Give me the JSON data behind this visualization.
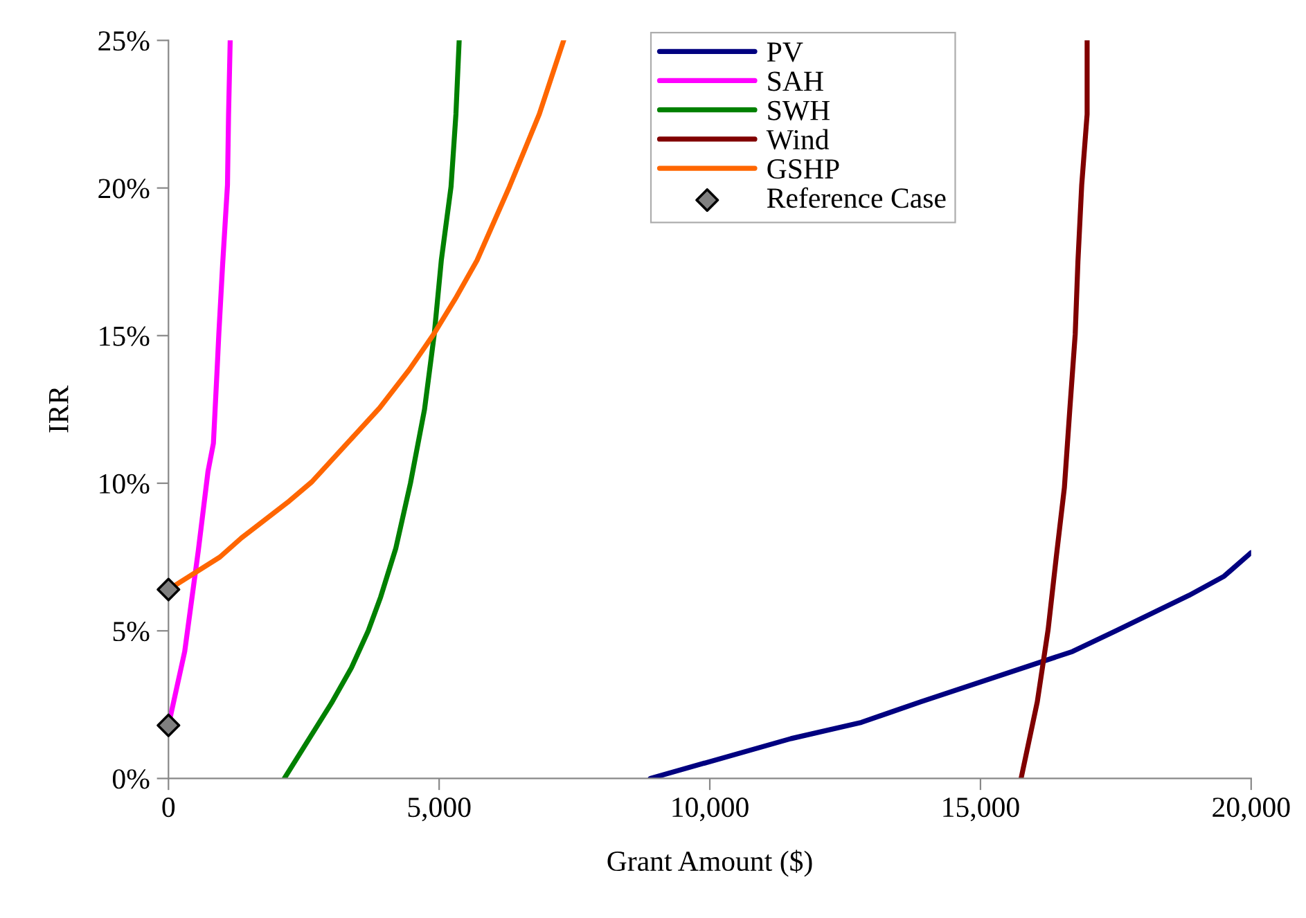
{
  "chart_data": {
    "type": "line",
    "xlabel": "Grant Amount ($)",
    "ylabel": "IRR",
    "xlim": [
      0,
      20000
    ],
    "xticks": [
      0,
      {
        "value": 5000,
        "label": "5,000"
      },
      {
        "value": 10000,
        "label": "10,000"
      },
      {
        "value": 15000,
        "label": "15,000"
      },
      {
        "value": 20000,
        "label": "20,000"
      }
    ],
    "ylim": [
      0,
      25
    ],
    "yticks": [
      {
        "value": 0,
        "label": "0%"
      },
      {
        "value": 5,
        "label": "5%"
      },
      {
        "value": 10,
        "label": "10%"
      },
      {
        "value": 15,
        "label": "15%"
      },
      {
        "value": 20,
        "label": "20%"
      },
      {
        "value": 25,
        "label": "25%"
      }
    ],
    "grid": false,
    "legend": "top right",
    "marker": "none",
    "line_style": "solid",
    "series": [
      {
        "name": "PV",
        "color": "#000080",
        "x": [
          8900,
          11500,
          12800,
          13350,
          13900,
          16700,
          17500,
          18850,
          19500,
          20000
        ],
        "values": [
          0,
          1.35,
          1.9,
          2.25,
          2.6,
          4.3,
          5.0,
          6.2,
          6.85,
          7.65
        ]
      },
      {
        "name": "SAH",
        "color": "#ff00ff",
        "x": [
          0,
          300,
          550,
          730,
          830,
          900,
          930,
          1000,
          1090,
          1110,
          1140
        ],
        "values": [
          1.8,
          4.3,
          7.7,
          10.4,
          11.35,
          13.9,
          15.05,
          17.4,
          20.1,
          22.5,
          25
        ]
      },
      {
        "name": "SWH",
        "color": "#008000",
        "x": [
          2140,
          3010,
          3380,
          3690,
          3920,
          4200,
          4470,
          4730,
          4910,
          5040,
          5220,
          5310,
          5370
        ],
        "values": [
          0,
          2.55,
          3.75,
          5.0,
          6.15,
          7.8,
          10.0,
          12.5,
          15.05,
          17.55,
          20.05,
          22.5,
          25
        ]
      },
      {
        "name": "Wind",
        "color": "#800000",
        "x": [
          15750,
          16050,
          16250,
          16400,
          16550,
          16650,
          16750,
          16800,
          16870,
          16970,
          16970
        ],
        "values": [
          0,
          2.6,
          5.05,
          7.5,
          9.85,
          12.5,
          15.05,
          17.5,
          20.1,
          22.5,
          25
        ]
      },
      {
        "name": "GSHP",
        "color": "#ff6600",
        "x": [
          0,
          950,
          1350,
          2200,
          2650,
          3900,
          4450,
          4900,
          5300,
          5700,
          6300,
          6850,
          7300
        ],
        "values": [
          6.4,
          7.5,
          8.15,
          9.35,
          10.05,
          12.55,
          13.85,
          15.05,
          16.25,
          17.55,
          20.05,
          22.5,
          25
        ]
      },
      {
        "name": "Reference Case",
        "type": "scatter",
        "color": "#808080",
        "marker": "diamond",
        "x": [
          0,
          0
        ],
        "values": [
          1.8,
          6.4
        ]
      }
    ]
  }
}
